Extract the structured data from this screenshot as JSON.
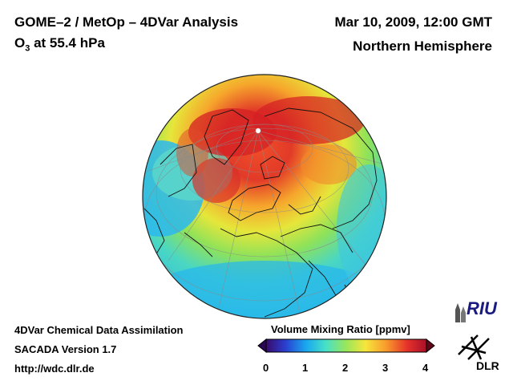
{
  "header": {
    "title": "GOME–2 / MetOp – 4DVar Analysis",
    "subtitle": "O",
    "subtitle_sub": "3",
    "subtitle_rest": " at 55.4 hPa",
    "date": "Mar 10, 2009, 12:00 GMT",
    "region": "Northern Hemisphere"
  },
  "footer": {
    "line1": "4DVar Chemical Data Assimilation",
    "line2": "SACADA Version 1.7",
    "line3": "http://wdc.dlr.de"
  },
  "colorbar": {
    "label": "Volume Mixing Ratio [ppmv]",
    "ticks": [
      "0",
      "1",
      "2",
      "3",
      "4"
    ],
    "range": [
      0,
      4
    ],
    "colors": [
      "#3a0a6b",
      "#2a3fd0",
      "#19a8f0",
      "#46e0c8",
      "#9ae65a",
      "#f7e63c",
      "#f89a2c",
      "#e5322a",
      "#a8102a"
    ]
  },
  "logos": {
    "riu": "RIU",
    "dlr": "DLR"
  }
}
